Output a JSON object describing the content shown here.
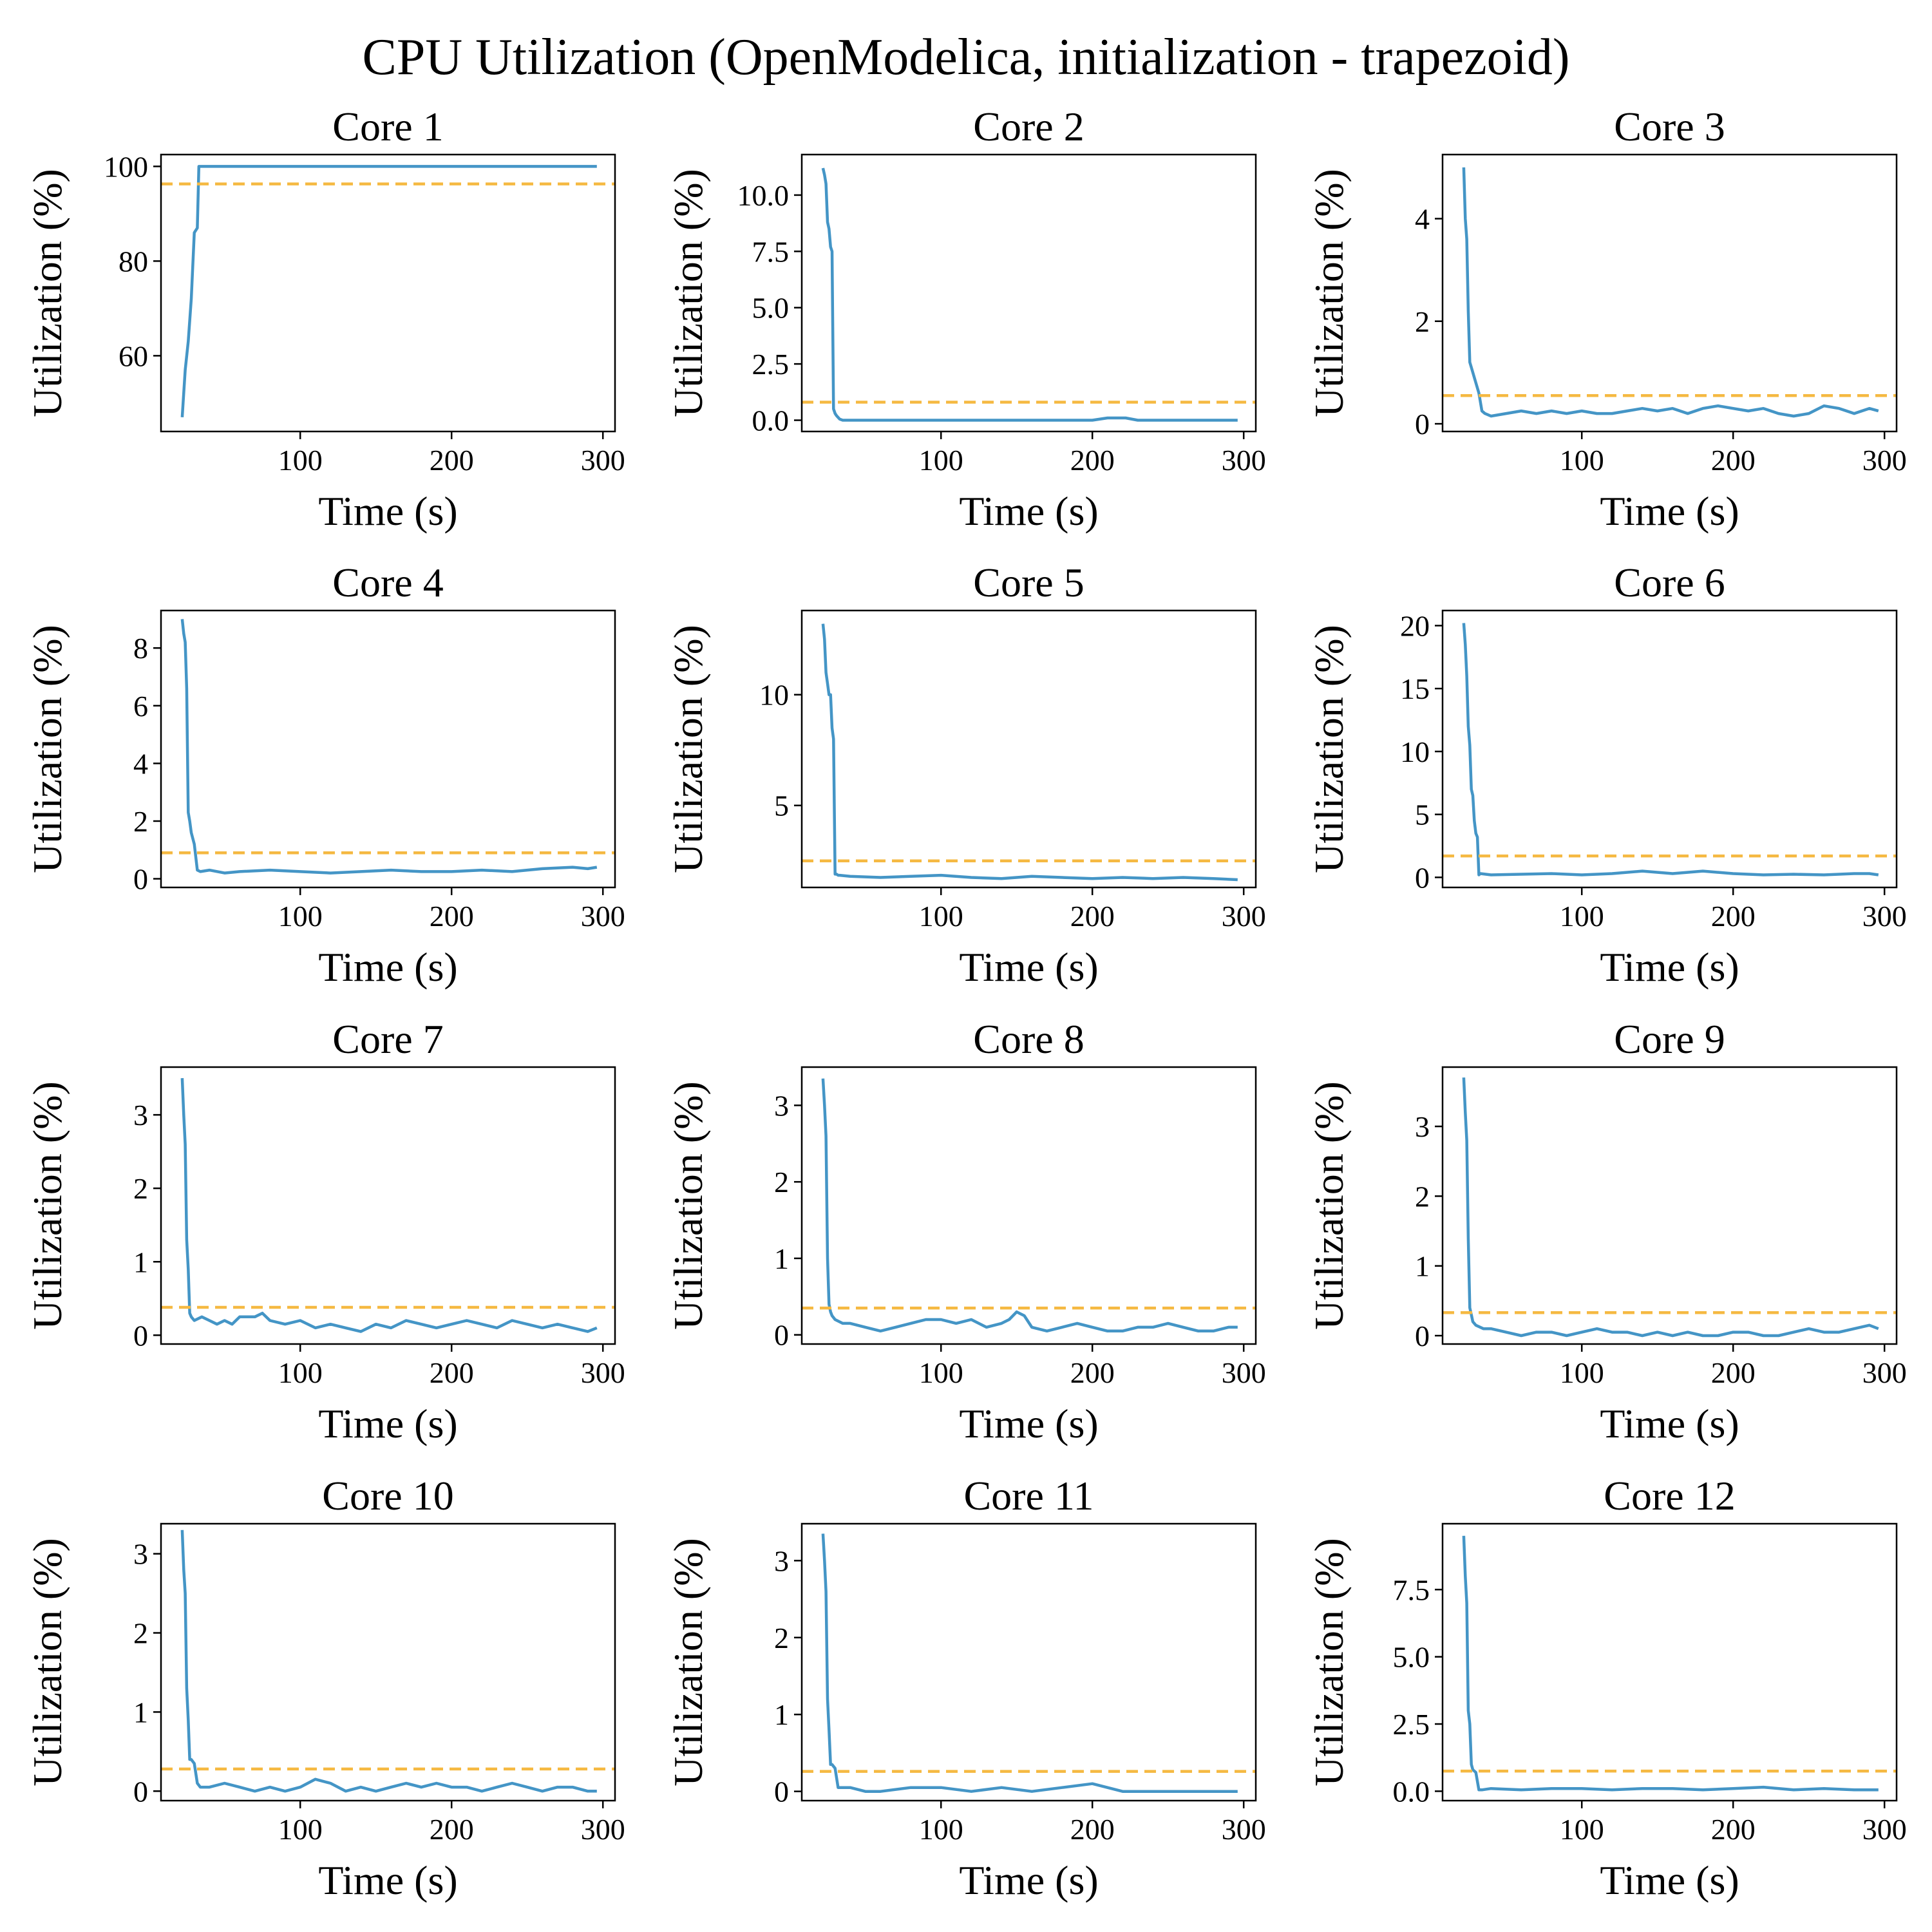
{
  "figure": {
    "title": "CPU Utilization (OpenModelica, initialization - trapezoid)"
  },
  "colors": {
    "series": "#4495c6",
    "reference": "#f5b942"
  },
  "chart_data": [
    {
      "type": "line",
      "title": "Core 1",
      "xlabel": "Time (s)",
      "ylabel": "Utilization (%)",
      "xlim": [
        8,
        308
      ],
      "ylim": [
        44,
        102.5
      ],
      "xticks": [
        100,
        200,
        300
      ],
      "yticks": [
        60,
        80,
        100
      ],
      "reference_line": 96.3,
      "x": [
        22,
        24,
        26,
        28,
        30,
        32,
        33,
        34,
        40,
        60,
        100,
        150,
        200,
        250,
        296
      ],
      "y": [
        47,
        57,
        63,
        72,
        86,
        87,
        100,
        100,
        100,
        100,
        100,
        100,
        100,
        100,
        100
      ]
    },
    {
      "type": "line",
      "title": "Core 2",
      "xlabel": "Time (s)",
      "ylabel": "Utilization (%)",
      "xlim": [
        8,
        308
      ],
      "ylim": [
        -0.5,
        11.8
      ],
      "xticks": [
        100,
        200,
        300
      ],
      "yticks": [
        0.0,
        2.5,
        5.0,
        7.5,
        10.0
      ],
      "ytick_labels": [
        "0.0",
        "2.5",
        "5.0",
        "7.5",
        "10.0"
      ],
      "reference_line": 0.8,
      "x": [
        22,
        23,
        24,
        25,
        26,
        27,
        28,
        29,
        30,
        31,
        33,
        35,
        60,
        100,
        150,
        200,
        210,
        222,
        230,
        260,
        296
      ],
      "y": [
        11.2,
        10.9,
        10.5,
        8.8,
        8.5,
        7.7,
        7.5,
        0.5,
        0.3,
        0.2,
        0.05,
        0.0,
        0.0,
        0.0,
        0.0,
        0.0,
        0.1,
        0.1,
        0.0,
        0.0,
        0.0
      ]
    },
    {
      "type": "line",
      "title": "Core 3",
      "xlabel": "Time (s)",
      "ylabel": "Utilization (%)",
      "xlim": [
        8,
        308
      ],
      "ylim": [
        -0.15,
        5.25
      ],
      "xticks": [
        100,
        200,
        300
      ],
      "yticks": [
        0,
        2,
        4
      ],
      "reference_line": 0.55,
      "x": [
        22,
        23,
        24,
        25,
        26,
        27,
        28,
        30,
        32,
        34,
        36,
        40,
        50,
        60,
        70,
        80,
        90,
        100,
        110,
        120,
        130,
        140,
        150,
        160,
        170,
        180,
        190,
        200,
        210,
        220,
        230,
        240,
        250,
        260,
        270,
        280,
        290,
        296
      ],
      "y": [
        5.0,
        4.0,
        3.6,
        2.2,
        1.2,
        1.1,
        1.0,
        0.8,
        0.6,
        0.25,
        0.2,
        0.15,
        0.2,
        0.25,
        0.2,
        0.25,
        0.2,
        0.25,
        0.2,
        0.2,
        0.25,
        0.3,
        0.25,
        0.3,
        0.2,
        0.3,
        0.35,
        0.3,
        0.25,
        0.3,
        0.2,
        0.15,
        0.2,
        0.35,
        0.3,
        0.2,
        0.3,
        0.25
      ]
    },
    {
      "type": "line",
      "title": "Core 4",
      "xlabel": "Time (s)",
      "ylabel": "Utilization (%)",
      "xlim": [
        8,
        308
      ],
      "ylim": [
        -0.3,
        9.3
      ],
      "xticks": [
        100,
        200,
        300
      ],
      "yticks": [
        0,
        2,
        4,
        6,
        8
      ],
      "reference_line": 0.9,
      "x": [
        22,
        23,
        24,
        25,
        26,
        27,
        28,
        30,
        32,
        34,
        40,
        50,
        60,
        80,
        100,
        120,
        140,
        160,
        180,
        200,
        220,
        240,
        260,
        280,
        290,
        296
      ],
      "y": [
        9.0,
        8.5,
        8.2,
        6.6,
        2.3,
        2.0,
        1.6,
        1.2,
        0.3,
        0.25,
        0.3,
        0.2,
        0.25,
        0.3,
        0.25,
        0.2,
        0.25,
        0.3,
        0.25,
        0.25,
        0.3,
        0.25,
        0.35,
        0.4,
        0.35,
        0.4
      ]
    },
    {
      "type": "line",
      "title": "Core 5",
      "xlabel": "Time (s)",
      "ylabel": "Utilization (%)",
      "xlim": [
        8,
        308
      ],
      "ylim": [
        1.3,
        13.8
      ],
      "xticks": [
        100,
        200,
        300
      ],
      "yticks": [
        5,
        10
      ],
      "reference_line": 2.5,
      "x": [
        22,
        23,
        24,
        25,
        26,
        27,
        28,
        29,
        30,
        31,
        32,
        33,
        40,
        60,
        80,
        100,
        120,
        140,
        160,
        180,
        200,
        220,
        240,
        260,
        280,
        296
      ],
      "y": [
        13.2,
        12.5,
        11.0,
        10.5,
        10.0,
        10.0,
        8.5,
        8.0,
        1.9,
        1.9,
        1.85,
        1.85,
        1.8,
        1.75,
        1.8,
        1.85,
        1.75,
        1.7,
        1.8,
        1.75,
        1.7,
        1.75,
        1.7,
        1.75,
        1.7,
        1.65
      ]
    },
    {
      "type": "line",
      "title": "Core 6",
      "xlabel": "Time (s)",
      "ylabel": "Utilization (%)",
      "xlim": [
        8,
        308
      ],
      "ylim": [
        -0.8,
        21.2
      ],
      "xticks": [
        100,
        200,
        300
      ],
      "yticks": [
        0,
        5,
        10,
        15,
        20
      ],
      "reference_line": 1.7,
      "x": [
        22,
        23,
        24,
        25,
        26,
        27,
        28,
        29,
        30,
        31,
        32,
        33,
        40,
        60,
        80,
        100,
        120,
        140,
        160,
        180,
        200,
        220,
        240,
        260,
        280,
        290,
        296
      ],
      "y": [
        20.2,
        18.5,
        16.0,
        12.0,
        10.5,
        7.0,
        6.5,
        4.5,
        3.5,
        3.2,
        0.2,
        0.3,
        0.2,
        0.25,
        0.3,
        0.2,
        0.3,
        0.5,
        0.3,
        0.5,
        0.3,
        0.2,
        0.25,
        0.2,
        0.3,
        0.3,
        0.2
      ]
    },
    {
      "type": "line",
      "title": "Core 7",
      "xlabel": "Time (s)",
      "ylabel": "Utilization (%)",
      "xlim": [
        8,
        308
      ],
      "ylim": [
        -0.12,
        3.65
      ],
      "xticks": [
        100,
        200,
        300
      ],
      "yticks": [
        0,
        1,
        2,
        3
      ],
      "reference_line": 0.38,
      "x": [
        22,
        23,
        24,
        25,
        26,
        27,
        28,
        30,
        35,
        40,
        45,
        50,
        55,
        60,
        70,
        75,
        80,
        90,
        100,
        110,
        120,
        130,
        140,
        150,
        160,
        170,
        180,
        190,
        200,
        210,
        220,
        230,
        240,
        250,
        260,
        270,
        280,
        290,
        296
      ],
      "y": [
        3.5,
        3.0,
        2.6,
        1.3,
        0.9,
        0.3,
        0.25,
        0.2,
        0.25,
        0.2,
        0.15,
        0.2,
        0.15,
        0.25,
        0.25,
        0.3,
        0.2,
        0.15,
        0.2,
        0.1,
        0.15,
        0.1,
        0.05,
        0.15,
        0.1,
        0.2,
        0.15,
        0.1,
        0.15,
        0.2,
        0.15,
        0.1,
        0.2,
        0.15,
        0.1,
        0.15,
        0.1,
        0.05,
        0.1
      ]
    },
    {
      "type": "line",
      "title": "Core 8",
      "xlabel": "Time (s)",
      "ylabel": "Utilization (%)",
      "xlim": [
        8,
        308
      ],
      "ylim": [
        -0.12,
        3.5
      ],
      "xticks": [
        100,
        200,
        300
      ],
      "yticks": [
        0,
        1,
        2,
        3
      ],
      "reference_line": 0.35,
      "x": [
        22,
        23,
        24,
        25,
        26,
        27,
        28,
        30,
        35,
        40,
        50,
        60,
        70,
        80,
        90,
        100,
        110,
        120,
        130,
        140,
        145,
        150,
        155,
        160,
        170,
        180,
        190,
        200,
        210,
        220,
        230,
        240,
        250,
        260,
        270,
        280,
        290,
        296
      ],
      "y": [
        3.35,
        3.0,
        2.6,
        1.0,
        0.4,
        0.3,
        0.25,
        0.2,
        0.15,
        0.15,
        0.1,
        0.05,
        0.1,
        0.15,
        0.2,
        0.2,
        0.15,
        0.2,
        0.1,
        0.15,
        0.2,
        0.3,
        0.25,
        0.1,
        0.05,
        0.1,
        0.15,
        0.1,
        0.05,
        0.05,
        0.1,
        0.1,
        0.15,
        0.1,
        0.05,
        0.05,
        0.1,
        0.1
      ]
    },
    {
      "type": "line",
      "title": "Core 9",
      "xlabel": "Time (s)",
      "ylabel": "Utilization (%)",
      "xlim": [
        8,
        308
      ],
      "ylim": [
        -0.12,
        3.85
      ],
      "xticks": [
        100,
        200,
        300
      ],
      "yticks": [
        0,
        1,
        2,
        3
      ],
      "reference_line": 0.33,
      "x": [
        22,
        23,
        24,
        25,
        26,
        27,
        28,
        30,
        35,
        40,
        50,
        60,
        70,
        80,
        90,
        100,
        110,
        120,
        130,
        140,
        150,
        160,
        170,
        180,
        190,
        200,
        210,
        220,
        230,
        240,
        250,
        260,
        270,
        280,
        290,
        296
      ],
      "y": [
        3.7,
        3.2,
        2.8,
        1.4,
        0.4,
        0.3,
        0.2,
        0.15,
        0.1,
        0.1,
        0.05,
        0.0,
        0.05,
        0.05,
        0.0,
        0.05,
        0.1,
        0.05,
        0.05,
        0.0,
        0.05,
        0.0,
        0.05,
        0.0,
        0.0,
        0.05,
        0.05,
        0.0,
        0.0,
        0.05,
        0.1,
        0.05,
        0.05,
        0.1,
        0.15,
        0.1
      ]
    },
    {
      "type": "line",
      "title": "Core 10",
      "xlabel": "Time (s)",
      "ylabel": "Utilization (%)",
      "xlim": [
        8,
        308
      ],
      "ylim": [
        -0.12,
        3.38
      ],
      "xticks": [
        100,
        200,
        300
      ],
      "yticks": [
        0,
        1,
        2,
        3
      ],
      "reference_line": 0.28,
      "x": [
        22,
        23,
        24,
        25,
        26,
        27,
        28,
        30,
        32,
        34,
        40,
        50,
        60,
        70,
        80,
        90,
        100,
        110,
        120,
        130,
        140,
        150,
        160,
        170,
        180,
        190,
        200,
        210,
        220,
        230,
        240,
        250,
        260,
        270,
        280,
        290,
        296
      ],
      "y": [
        3.3,
        2.8,
        2.5,
        1.3,
        0.9,
        0.4,
        0.4,
        0.35,
        0.1,
        0.05,
        0.05,
        0.1,
        0.05,
        0.0,
        0.05,
        0.0,
        0.05,
        0.15,
        0.1,
        0.0,
        0.05,
        0.0,
        0.05,
        0.1,
        0.05,
        0.1,
        0.05,
        0.05,
        0.0,
        0.05,
        0.1,
        0.05,
        0.0,
        0.05,
        0.05,
        0.0,
        0.0
      ]
    },
    {
      "type": "line",
      "title": "Core 11",
      "xlabel": "Time (s)",
      "ylabel": "Utilization (%)",
      "xlim": [
        8,
        308
      ],
      "ylim": [
        -0.12,
        3.48
      ],
      "xticks": [
        100,
        200,
        300
      ],
      "yticks": [
        0,
        1,
        2,
        3
      ],
      "reference_line": 0.26,
      "x": [
        22,
        23,
        24,
        25,
        26,
        27,
        28,
        30,
        32,
        34,
        40,
        50,
        60,
        80,
        100,
        120,
        140,
        160,
        180,
        200,
        210,
        220,
        240,
        260,
        280,
        296
      ],
      "y": [
        3.35,
        3.0,
        2.6,
        1.2,
        0.8,
        0.35,
        0.35,
        0.3,
        0.05,
        0.05,
        0.05,
        0.0,
        0.0,
        0.05,
        0.05,
        0.0,
        0.05,
        0.0,
        0.05,
        0.1,
        0.05,
        0.0,
        0.0,
        0.0,
        0.0,
        0.0
      ]
    },
    {
      "type": "line",
      "title": "Core 12",
      "xlabel": "Time (s)",
      "ylabel": "Utilization (%)",
      "xlim": [
        8,
        308
      ],
      "ylim": [
        -0.35,
        9.95
      ],
      "xticks": [
        100,
        200,
        300
      ],
      "yticks": [
        0.0,
        2.5,
        5.0,
        7.5
      ],
      "ytick_labels": [
        "0.0",
        "2.5",
        "5.0",
        "7.5"
      ],
      "reference_line": 0.75,
      "x": [
        22,
        23,
        24,
        25,
        26,
        27,
        28,
        30,
        32,
        34,
        40,
        60,
        80,
        100,
        120,
        140,
        160,
        180,
        200,
        220,
        240,
        260,
        280,
        296
      ],
      "y": [
        9.5,
        8.0,
        7.0,
        3.0,
        2.5,
        1.0,
        0.8,
        0.7,
        0.05,
        0.05,
        0.1,
        0.05,
        0.1,
        0.1,
        0.05,
        0.1,
        0.1,
        0.05,
        0.1,
        0.15,
        0.05,
        0.1,
        0.05,
        0.05
      ]
    }
  ]
}
